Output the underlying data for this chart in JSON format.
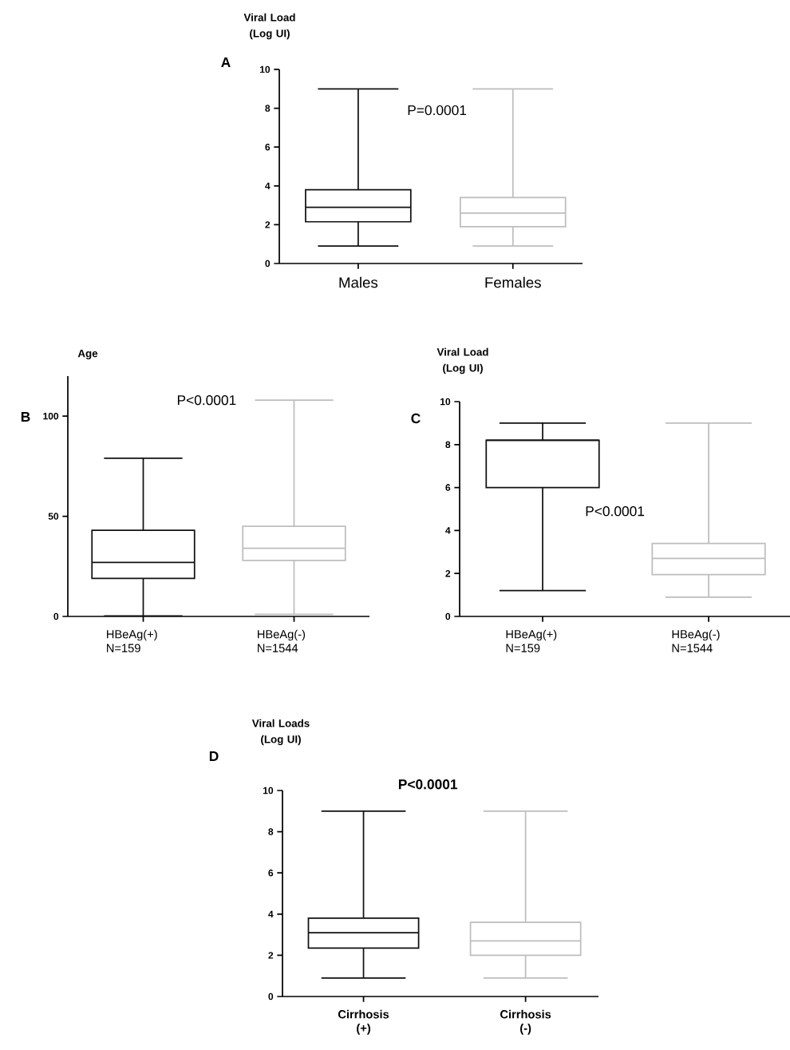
{
  "chart_data": [
    {
      "type": "box",
      "title": "A",
      "ylabel": "Viral Load (Log UI)",
      "categories": [
        "Males",
        "Females"
      ],
      "colors": [
        "#111111",
        "#bdbdbd"
      ],
      "boxes": [
        {
          "low": 0.9,
          "q1": 2.15,
          "median": 2.9,
          "q3": 3.8,
          "high": 9
        },
        {
          "low": 0.9,
          "q1": 1.9,
          "median": 2.6,
          "q3": 3.4,
          "high": 9
        }
      ],
      "ylim": [
        0,
        10
      ],
      "yticks": [
        0,
        2,
        4,
        6,
        8,
        10
      ],
      "annotations": [
        "P=0.0001"
      ]
    },
    {
      "type": "box",
      "title": "B",
      "ylabel": "Age",
      "categories": [
        "HBeAg(+) N=159",
        "HBeAg(-) N=1544"
      ],
      "colors": [
        "#111111",
        "#bdbdbd"
      ],
      "boxes": [
        {
          "low": 0.3,
          "q1": 19,
          "median": 27,
          "q3": 43,
          "high": 79
        },
        {
          "low": 1,
          "q1": 28,
          "median": 34,
          "q3": 45,
          "high": 108
        }
      ],
      "ylim": [
        0,
        120
      ],
      "yticks": [
        0,
        50,
        100
      ],
      "annotations": [
        "P<0.0001"
      ]
    },
    {
      "type": "box",
      "title": "C",
      "ylabel": "Viral Load (Log UI)",
      "categories": [
        "HBeAg(+) N=159",
        "HBeAg(-) N=1544"
      ],
      "colors": [
        "#111111",
        "#bdbdbd"
      ],
      "boxes": [
        {
          "low": 1.2,
          "q1": 6,
          "median": 8.2,
          "q3": 8.2,
          "high": 9
        },
        {
          "low": 0.9,
          "q1": 1.95,
          "median": 2.7,
          "q3": 3.4,
          "high": 9
        }
      ],
      "ylim": [
        0,
        10
      ],
      "yticks": [
        0,
        2,
        4,
        6,
        8,
        10
      ],
      "annotations": [
        "P<0.0001"
      ]
    },
    {
      "type": "box",
      "title": "D",
      "ylabel": "Viral Loads (Log UI)",
      "categories": [
        "Cirrhosis (+)",
        "Cirrhosis (-)"
      ],
      "colors": [
        "#111111",
        "#bdbdbd"
      ],
      "boxes": [
        {
          "low": 0.9,
          "q1": 2.35,
          "median": 3.1,
          "q3": 3.8,
          "high": 9
        },
        {
          "low": 0.9,
          "q1": 2,
          "median": 2.7,
          "q3": 3.6,
          "high": 9
        }
      ],
      "ylim": [
        0,
        10
      ],
      "yticks": [
        0,
        2,
        4,
        6,
        8,
        10
      ],
      "annotations": [
        "P<0.0001"
      ]
    }
  ]
}
